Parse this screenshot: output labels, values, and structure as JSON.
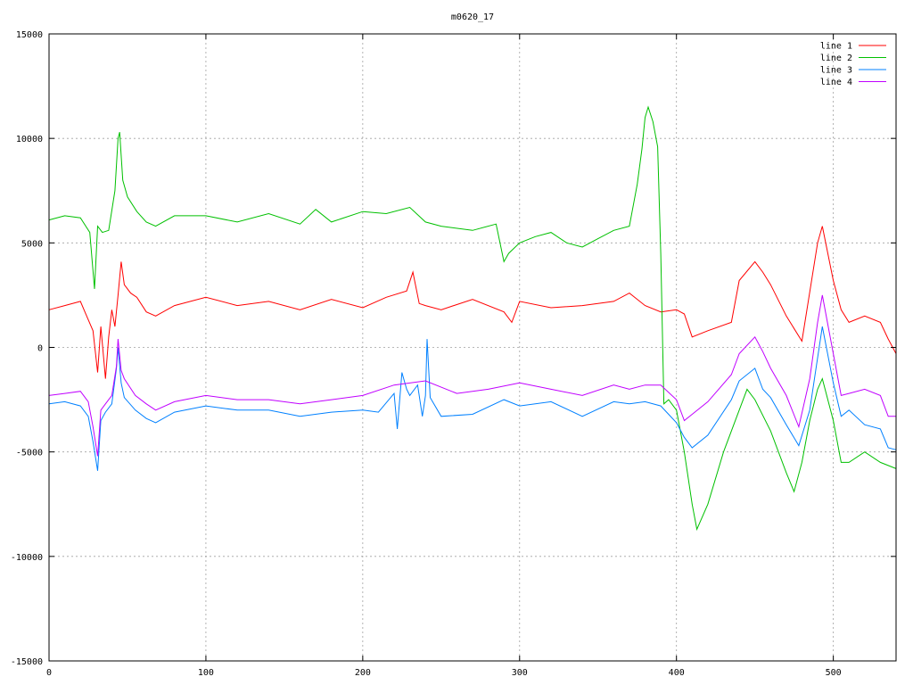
{
  "chart_data": {
    "type": "line",
    "title": "m0620_17",
    "xlabel": "",
    "ylabel": "",
    "xlim": [
      0,
      540
    ],
    "ylim": [
      -15000,
      15000
    ],
    "grid": true,
    "legend_position": "top-right",
    "x_ticks": [
      0,
      100,
      200,
      300,
      400,
      500
    ],
    "y_ticks": [
      -15000,
      -10000,
      -5000,
      0,
      5000,
      10000,
      15000
    ],
    "series": [
      {
        "name": "line 1",
        "color": "#ff0000",
        "x": [
          0,
          10,
          20,
          24,
          28,
          31,
          33,
          36,
          38,
          40,
          42,
          44,
          46,
          48,
          52,
          56,
          62,
          68,
          80,
          100,
          120,
          140,
          160,
          180,
          200,
          215,
          228,
          232,
          236,
          240,
          250,
          270,
          290,
          295,
          300,
          320,
          340,
          360,
          370,
          380,
          390,
          400,
          405,
          410,
          420,
          435,
          440,
          450,
          455,
          460,
          470,
          480,
          490,
          493,
          500,
          505,
          510,
          520,
          530,
          535,
          540
        ],
        "y": [
          1800,
          2000,
          2200,
          1500,
          800,
          -1200,
          1000,
          -1500,
          500,
          1800,
          1000,
          2500,
          4100,
          3000,
          2600,
          2400,
          1700,
          1500,
          2000,
          2400,
          2000,
          2200,
          1800,
          2300,
          1900,
          2400,
          2700,
          3600,
          2100,
          2000,
          1800,
          2300,
          1700,
          1200,
          2200,
          1900,
          2000,
          2200,
          2600,
          2000,
          1700,
          1800,
          1600,
          500,
          800,
          1200,
          3200,
          4100,
          3600,
          3000,
          1500,
          300,
          5000,
          5800,
          3200,
          1800,
          1200,
          1500,
          1200,
          400,
          -300
        ]
      },
      {
        "name": "line 2",
        "color": "#00c000",
        "x": [
          0,
          10,
          20,
          26,
          29,
          31,
          34,
          38,
          42,
          44,
          45,
          47,
          50,
          56,
          62,
          68,
          80,
          100,
          120,
          140,
          160,
          170,
          180,
          200,
          215,
          230,
          240,
          250,
          270,
          285,
          290,
          293,
          300,
          310,
          320,
          330,
          340,
          350,
          360,
          370,
          375,
          378,
          380,
          382,
          385,
          388,
          390,
          392,
          395,
          400,
          405,
          410,
          413,
          420,
          430,
          440,
          445,
          450,
          460,
          470,
          475,
          480,
          485,
          490,
          493,
          500,
          505,
          510,
          520,
          530,
          540
        ],
        "y": [
          6100,
          6300,
          6200,
          5500,
          2800,
          5800,
          5500,
          5600,
          7500,
          10000,
          10300,
          8000,
          7200,
          6500,
          6000,
          5800,
          6300,
          6300,
          6000,
          6400,
          5900,
          6600,
          6000,
          6500,
          6400,
          6700,
          6000,
          5800,
          5600,
          5900,
          4100,
          4500,
          5000,
          5300,
          5500,
          5000,
          4800,
          5200,
          5600,
          5800,
          7800,
          9500,
          11000,
          11500,
          10800,
          9600,
          4500,
          -2700,
          -2500,
          -3000,
          -5000,
          -7500,
          -8700,
          -7500,
          -5000,
          -3000,
          -2000,
          -2500,
          -4000,
          -6000,
          -6900,
          -5500,
          -3500,
          -2000,
          -1500,
          -3500,
          -5500,
          -5500,
          -5000,
          -5500,
          -5800
        ]
      },
      {
        "name": "line 3",
        "color": "#0080ff",
        "x": [
          0,
          10,
          20,
          25,
          28,
          31,
          33,
          36,
          40,
          43,
          44,
          46,
          48,
          55,
          62,
          68,
          80,
          100,
          120,
          140,
          160,
          180,
          200,
          210,
          220,
          222,
          225,
          228,
          230,
          235,
          238,
          240,
          241,
          243,
          250,
          270,
          290,
          300,
          320,
          340,
          360,
          370,
          380,
          390,
          400,
          405,
          410,
          420,
          435,
          440,
          450,
          455,
          460,
          470,
          478,
          485,
          490,
          493,
          500,
          505,
          510,
          520,
          530,
          535,
          540
        ],
        "y": [
          -2700,
          -2600,
          -2800,
          -3300,
          -4500,
          -5900,
          -3500,
          -3100,
          -2700,
          -1000,
          0,
          -1700,
          -2400,
          -3000,
          -3400,
          -3600,
          -3100,
          -2800,
          -3000,
          -3000,
          -3300,
          -3100,
          -3000,
          -3100,
          -2200,
          -3900,
          -1200,
          -2000,
          -2300,
          -1800,
          -3300,
          -2300,
          400,
          -2400,
          -3300,
          -3200,
          -2500,
          -2800,
          -2600,
          -3300,
          -2600,
          -2700,
          -2600,
          -2800,
          -3600,
          -4300,
          -4800,
          -4200,
          -2500,
          -1600,
          -1000,
          -2000,
          -2400,
          -3700,
          -4700,
          -3000,
          -500,
          1000,
          -1700,
          -3300,
          -3000,
          -3700,
          -3900,
          -4800,
          -4900
        ]
      },
      {
        "name": "line 4",
        "color": "#c000ff",
        "x": [
          0,
          10,
          20,
          25,
          28,
          31,
          33,
          36,
          40,
          43,
          44,
          46,
          48,
          55,
          62,
          68,
          80,
          100,
          120,
          140,
          160,
          180,
          200,
          220,
          240,
          260,
          280,
          300,
          320,
          340,
          360,
          370,
          380,
          390,
          400,
          405,
          410,
          420,
          435,
          440,
          450,
          455,
          460,
          470,
          478,
          485,
          490,
          493,
          500,
          505,
          510,
          520,
          530,
          535,
          540
        ],
        "y": [
          -2300,
          -2200,
          -2100,
          -2600,
          -3800,
          -5200,
          -3000,
          -2700,
          -2300,
          -900,
          400,
          -1100,
          -1500,
          -2300,
          -2700,
          -3000,
          -2600,
          -2300,
          -2500,
          -2500,
          -2700,
          -2500,
          -2300,
          -1800,
          -1600,
          -2200,
          -2000,
          -1700,
          -2000,
          -2300,
          -1800,
          -2000,
          -1800,
          -1800,
          -2500,
          -3500,
          -3200,
          -2600,
          -1300,
          -300,
          500,
          -200,
          -1000,
          -2300,
          -3800,
          -1500,
          1200,
          2500,
          -300,
          -2300,
          -2200,
          -2000,
          -2300,
          -3300,
          -3300
        ]
      }
    ]
  }
}
